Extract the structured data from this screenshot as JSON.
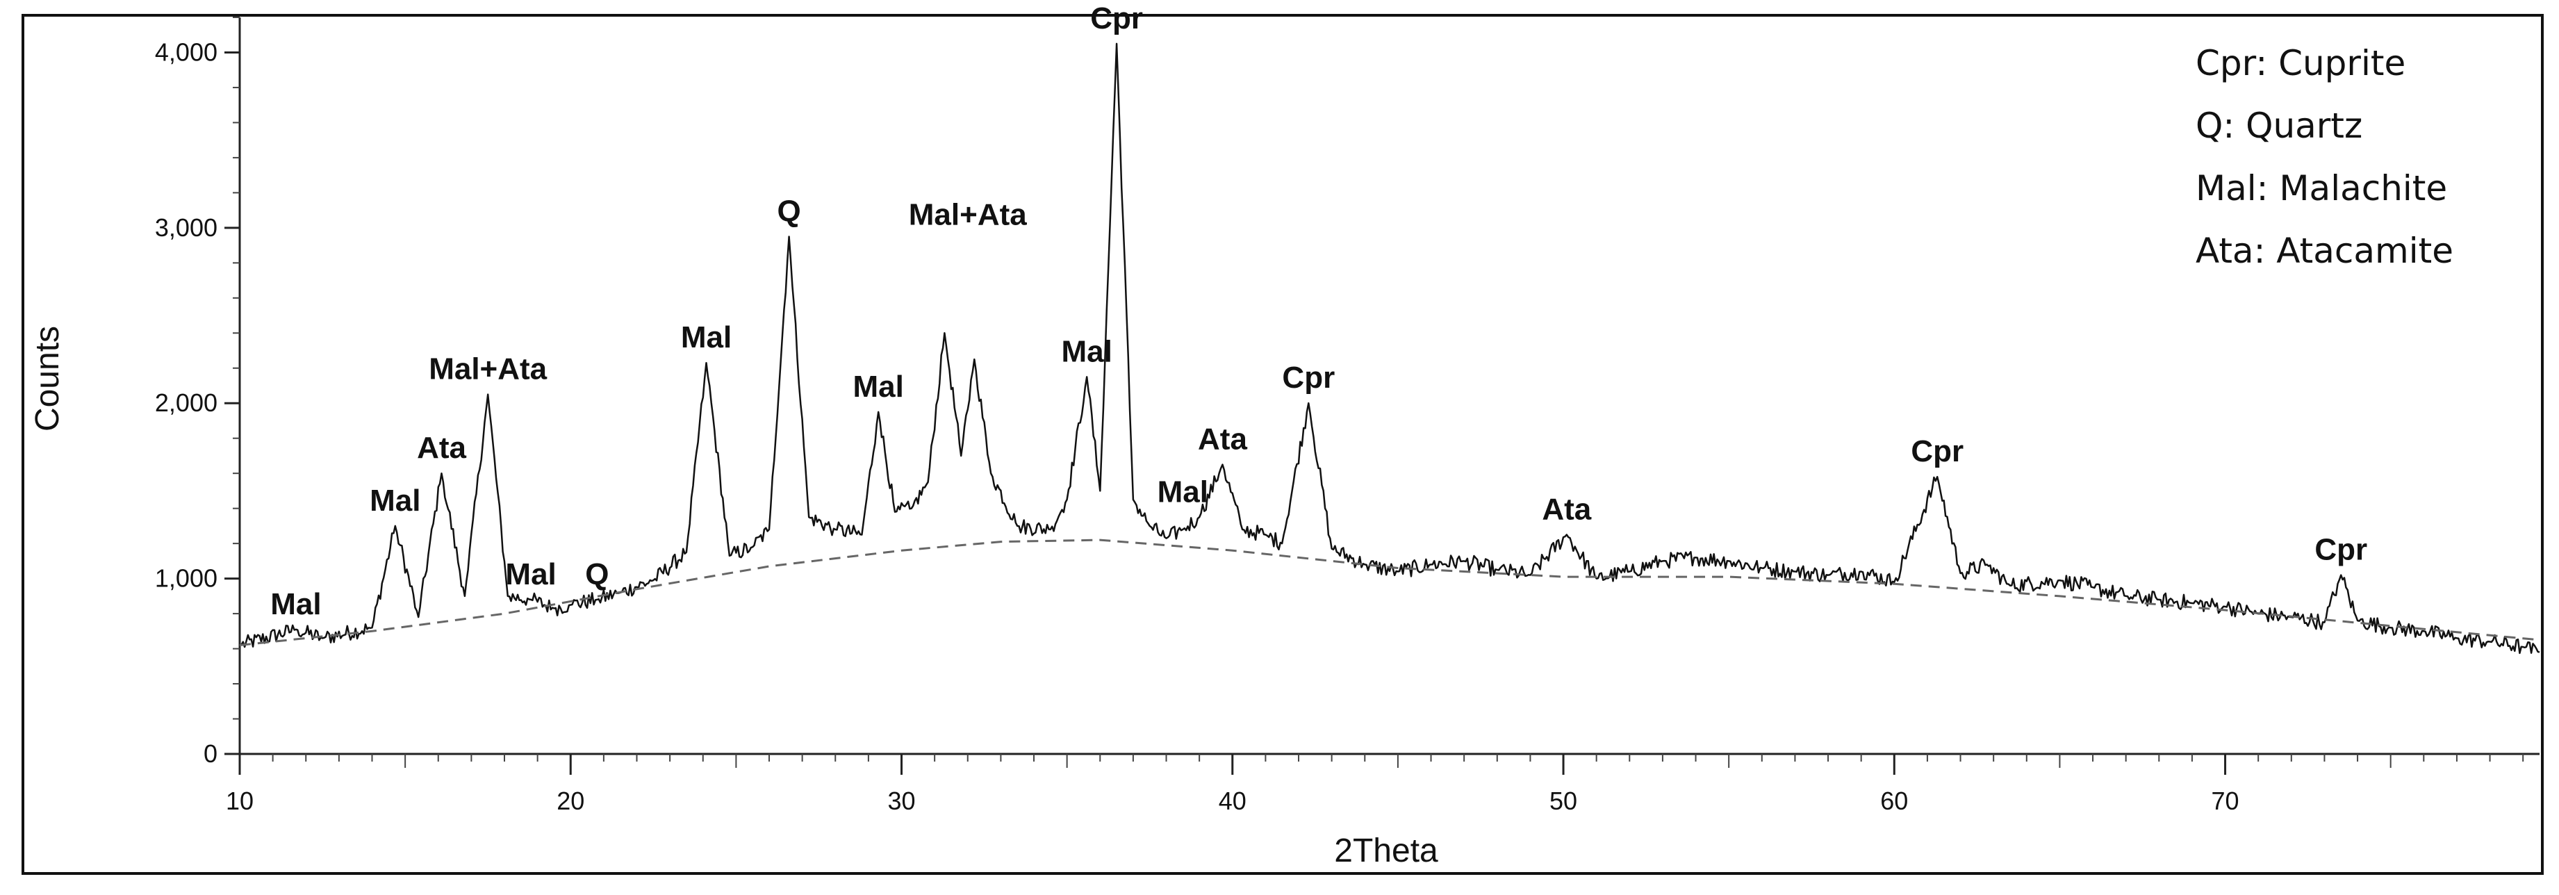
{
  "chart_data": {
    "type": "line",
    "title": "",
    "xlabel": "2Theta",
    "ylabel": "Counts",
    "xlim": [
      10,
      79.5
    ],
    "ylim": [
      0,
      4200
    ],
    "x_ticks": [
      10,
      20,
      30,
      40,
      50,
      60,
      70
    ],
    "y_ticks": [
      0,
      1000,
      2000,
      3000,
      4000
    ],
    "y_tick_labels": [
      "0",
      "1,000",
      "2,000",
      "3,000",
      "4,000"
    ],
    "grid": false,
    "series": [
      {
        "style": "solid",
        "x": [
          10,
          11.7,
          12.5,
          14.0,
          14.7,
          15.4,
          16.1,
          16.8,
          17.5,
          18.1,
          18.8,
          19.5,
          20.0,
          20.8,
          21.5,
          22.5,
          23.5,
          24.1,
          24.8,
          25.5,
          26.0,
          26.6,
          27.2,
          28.0,
          28.8,
          29.3,
          29.8,
          30.3,
          30.8,
          31.3,
          31.8,
          32.2,
          32.7,
          33.5,
          34.5,
          35.0,
          35.6,
          36.0,
          36.5,
          37.0,
          37.5,
          38.0,
          38.5,
          39.0,
          39.7,
          40.3,
          41.0,
          41.5,
          42.3,
          43.0,
          44.0,
          45.0,
          46.0,
          47.0,
          48.0,
          49.0,
          50.1,
          51.0,
          52.0,
          53.0,
          54.0,
          55.0,
          56.0,
          57.0,
          58.0,
          59.0,
          60.0,
          61.3,
          62.0,
          62.8,
          63.5,
          65.0,
          66.0,
          67.0,
          68.0,
          69.0,
          70.0,
          71.0,
          72.0,
          73.0,
          73.5,
          74.0,
          75.0,
          76.0,
          77.0,
          78.0,
          79.0,
          79.5
        ],
        "y": [
          620,
          710,
          660,
          720,
          1300,
          780,
          1600,
          900,
          2050,
          900,
          880,
          830,
          850,
          880,
          920,
          990,
          1150,
          2230,
          1130,
          1180,
          1280,
          2950,
          1350,
          1280,
          1250,
          1950,
          1380,
          1400,
          1550,
          2400,
          1700,
          2250,
          1600,
          1300,
          1280,
          1450,
          2150,
          1500,
          4050,
          1450,
          1300,
          1230,
          1280,
          1350,
          1650,
          1280,
          1250,
          1200,
          2000,
          1170,
          1080,
          1040,
          1080,
          1100,
          1050,
          1020,
          1250,
          1000,
          1040,
          1100,
          1120,
          1100,
          1060,
          1040,
          1020,
          1040,
          980,
          1580,
          1030,
          1080,
          960,
          990,
          950,
          900,
          880,
          860,
          840,
          800,
          780,
          750,
          1020,
          760,
          720,
          700,
          660,
          640,
          610,
          580
        ]
      },
      {
        "style": "dashed",
        "x": [
          10,
          14,
          18,
          22,
          26,
          30,
          33,
          36,
          40,
          45,
          50,
          55,
          60,
          65,
          70,
          75,
          79.5
        ],
        "y": [
          620,
          700,
          800,
          940,
          1070,
          1160,
          1210,
          1220,
          1160,
          1060,
          1010,
          1010,
          970,
          900,
          820,
          730,
          650
        ]
      }
    ],
    "annotations": [
      {
        "text": "Mal",
        "x": 11.7,
        "y": 710
      },
      {
        "text": "Mal",
        "x": 14.7,
        "y": 1300
      },
      {
        "text": "Ata",
        "x": 16.1,
        "y": 1600
      },
      {
        "text": "Mal+Ata",
        "x": 17.5,
        "y": 2050
      },
      {
        "text": "Mal",
        "x": 18.8,
        "y": 880
      },
      {
        "text": "Q",
        "x": 20.8,
        "y": 880
      },
      {
        "text": "Mal",
        "x": 24.1,
        "y": 2230
      },
      {
        "text": "Q",
        "x": 26.6,
        "y": 2950
      },
      {
        "text": "Mal",
        "x": 29.3,
        "y": 1950
      },
      {
        "text": "Mal+Ata",
        "x": 32.0,
        "y": 2930
      },
      {
        "text": "Mal",
        "x": 35.6,
        "y": 2150
      },
      {
        "text": "Cpr",
        "x": 36.5,
        "y": 4050
      },
      {
        "text": "Mal",
        "x": 38.5,
        "y": 1350
      },
      {
        "text": "Ata",
        "x": 39.7,
        "y": 1650
      },
      {
        "text": "Cpr",
        "x": 42.3,
        "y": 2000
      },
      {
        "text": "Ata",
        "x": 50.1,
        "y": 1250
      },
      {
        "text": "Cpr",
        "x": 61.3,
        "y": 1580
      },
      {
        "text": "Cpr",
        "x": 73.5,
        "y": 1020
      }
    ],
    "legend": {
      "placement": "top-right",
      "entries": [
        "Cpr: Cuprite",
        "Q: Quartz",
        "Mal: Malachite",
        "Ata: Atacamite"
      ]
    }
  }
}
